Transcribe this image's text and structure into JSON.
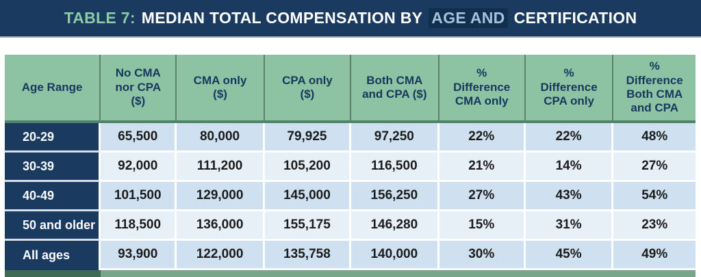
{
  "title": {
    "prefix": "TABLE 7:",
    "main": "MEDIAN TOTAL COMPENSATION BY",
    "highlight": "AGE AND",
    "suffix": "CERTIFICATION"
  },
  "colors": {
    "navy": "#1a3a60",
    "title_green": "#8dcba6",
    "title_blue": "#a4c3dd",
    "header_green": "#8dc3a3",
    "header_text": "#17375e",
    "header_underline": "#4f8368",
    "row_odd": "#cfe1f0",
    "row_even": "#e7eff7",
    "bottom_bar_green": "#77a68a",
    "bottom_bar_dark": "#3f6b55"
  },
  "table": {
    "columns": [
      "Age Range",
      "No CMA\nnor CPA\n($)",
      "CMA only\n($)",
      "CPA only\n($)",
      "Both CMA\nand CPA ($)",
      "%\nDifference\nCMA only",
      "%\nDifference\nCPA only",
      "%\nDifference\nBoth CMA\nand CPA"
    ],
    "rows": [
      {
        "label": "20-29",
        "values": [
          "65,500",
          "80,000",
          "79,925",
          "97,250",
          "22%",
          "22%",
          "48%"
        ]
      },
      {
        "label": "30-39",
        "values": [
          "92,000",
          "111,200",
          "105,200",
          "116,500",
          "21%",
          "14%",
          "27%"
        ]
      },
      {
        "label": "40-49",
        "values": [
          "101,500",
          "129,000",
          "145,000",
          "156,250",
          "27%",
          "43%",
          "54%"
        ]
      },
      {
        "label": "50 and older",
        "values": [
          "118,500",
          "136,000",
          "155,175",
          "146,280",
          "15%",
          "31%",
          "23%"
        ]
      },
      {
        "label": "All ages",
        "values": [
          "93,900",
          "122,000",
          "135,758",
          "140,000",
          "30%",
          "45%",
          "49%"
        ]
      }
    ]
  },
  "chart_data": {
    "type": "table",
    "title": "TABLE 7: MEDIAN TOTAL COMPENSATION BY AGE AND CERTIFICATION",
    "columns": [
      "Age Range",
      "No CMA nor CPA ($)",
      "CMA only ($)",
      "CPA only ($)",
      "Both CMA and CPA ($)",
      "% Difference CMA only",
      "% Difference CPA only",
      "% Difference Both CMA and CPA"
    ],
    "rows": [
      [
        "20-29",
        65500,
        80000,
        79925,
        97250,
        "22%",
        "22%",
        "48%"
      ],
      [
        "30-39",
        92000,
        111200,
        105200,
        116500,
        "21%",
        "14%",
        "27%"
      ],
      [
        "40-49",
        101500,
        129000,
        145000,
        156250,
        "27%",
        "43%",
        "54%"
      ],
      [
        "50 and older",
        118500,
        136000,
        155175,
        146280,
        "15%",
        "31%",
        "23%"
      ],
      [
        "All ages",
        93900,
        122000,
        135758,
        140000,
        "30%",
        "45%",
        "49%"
      ]
    ]
  }
}
